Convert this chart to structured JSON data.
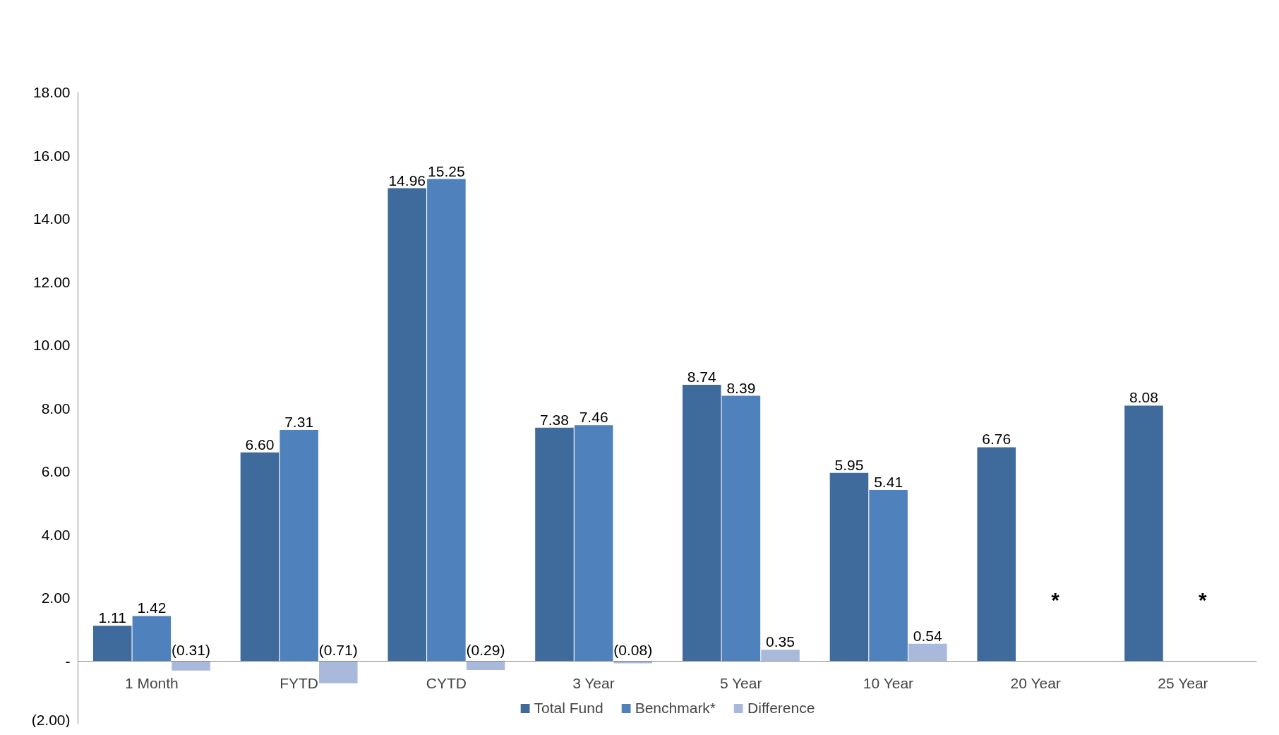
{
  "chart_data": {
    "type": "bar",
    "categories": [
      "1 Month",
      "FYTD",
      "CYTD",
      "3 Year",
      "5 Year",
      "10 Year",
      "20 Year",
      "25 Year"
    ],
    "series": [
      {
        "name": "Total Fund",
        "color": "#3f6a9c",
        "values": [
          1.11,
          6.6,
          14.96,
          7.38,
          8.74,
          5.95,
          6.76,
          8.08
        ],
        "value_labels": [
          "1.11",
          "6.60",
          "14.96",
          "7.38",
          "8.74",
          "5.95",
          "6.76",
          "8.08"
        ]
      },
      {
        "name": "Benchmark*",
        "color": "#4f81bd",
        "values": [
          1.42,
          7.31,
          15.25,
          7.46,
          8.39,
          5.41,
          null,
          null
        ],
        "value_labels": [
          "1.42",
          "7.31",
          "15.25",
          "7.46",
          "8.39",
          "5.41",
          null,
          null
        ]
      },
      {
        "name": "Difference",
        "color": "#a9b9dc",
        "values": [
          -0.31,
          -0.71,
          -0.29,
          -0.08,
          0.35,
          0.54,
          null,
          null
        ],
        "value_labels": [
          "(0.31)",
          "(0.71)",
          "(0.29)",
          "(0.08)",
          "0.35",
          "0.54",
          null,
          null
        ]
      }
    ],
    "annotations": [
      "*",
      "*"
    ],
    "ylim": [
      -2,
      18
    ],
    "yticks": [
      {
        "value": -2,
        "label": "(2.00)"
      },
      {
        "value": 0,
        "label": "-"
      },
      {
        "value": 2,
        "label": "2.00"
      },
      {
        "value": 4,
        "label": "4.00"
      },
      {
        "value": 6,
        "label": "6.00"
      },
      {
        "value": 8,
        "label": "8.00"
      },
      {
        "value": 10,
        "label": "10.00"
      },
      {
        "value": 12,
        "label": "12.00"
      },
      {
        "value": 14,
        "label": "14.00"
      },
      {
        "value": 16,
        "label": "16.00"
      },
      {
        "value": 18,
        "label": "18.00"
      }
    ],
    "grid": false,
    "legend": "bottom"
  }
}
